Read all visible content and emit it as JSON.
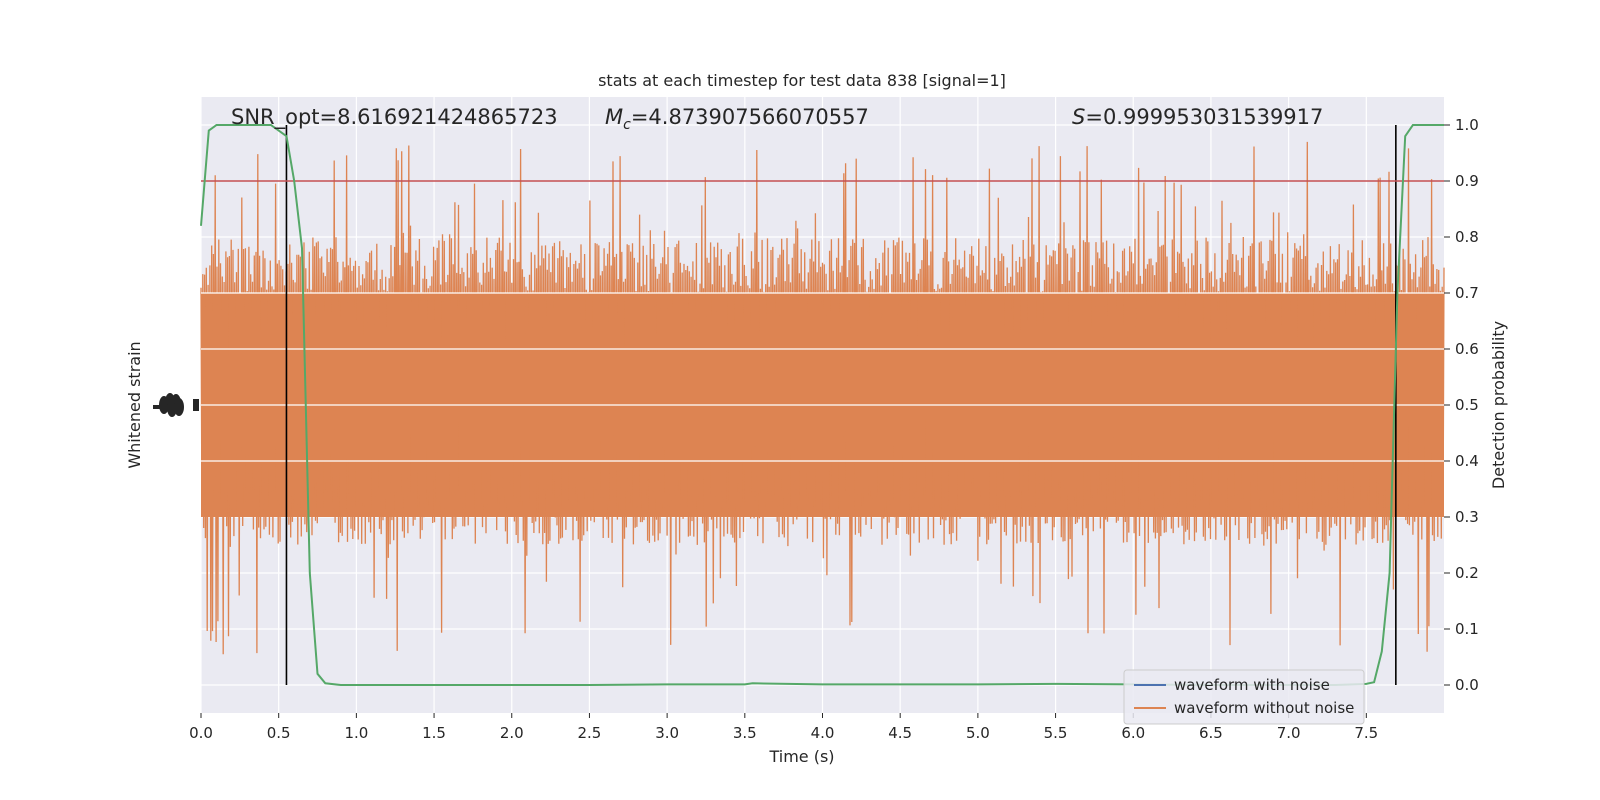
{
  "chart_data": {
    "type": "line",
    "title": "stats at each timestep for test data 838 [signal=1]",
    "xlabel": "Time (s)",
    "ylabel_left": "Whitened strain",
    "ylabel_right": "Detection probability",
    "xlim": [
      0.0,
      8.0
    ],
    "ylim_right": [
      -0.05,
      1.05
    ],
    "x_ticks": [
      "0.0",
      "0.5",
      "1.0",
      "1.5",
      "2.0",
      "2.5",
      "3.0",
      "3.5",
      "4.0",
      "4.5",
      "5.0",
      "5.5",
      "6.0",
      "6.5",
      "7.0",
      "7.5"
    ],
    "x_tick_values": [
      0.0,
      0.5,
      1.0,
      1.5,
      2.0,
      2.5,
      3.0,
      3.5,
      4.0,
      4.5,
      5.0,
      5.5,
      6.0,
      6.5,
      7.0,
      7.5
    ],
    "y_ticks_right": [
      "0.0",
      "0.1",
      "0.2",
      "0.3",
      "0.4",
      "0.5",
      "0.6",
      "0.7",
      "0.8",
      "0.9",
      "1.0"
    ],
    "y_tick_values_right": [
      0.0,
      0.1,
      0.2,
      0.3,
      0.4,
      0.5,
      0.6,
      0.7,
      0.8,
      0.9,
      1.0
    ],
    "annotations": {
      "snr": "SNR_opt=8.616921424865723",
      "mc_symbol": "M",
      "mc_sub": "c",
      "mc_value": "=4.873907566070557",
      "s_symbol": "S",
      "s_value": "=0.999953031539917"
    },
    "threshold": 0.9,
    "vertical_markers": [
      0.55,
      7.69
    ],
    "series": [
      {
        "name": "waveform with noise",
        "color": "#4c72b0"
      },
      {
        "name": "waveform without noise",
        "color": "#dd8452"
      },
      {
        "color": "#55a868",
        "x": [
          0.0,
          0.05,
          0.1,
          0.15,
          0.2,
          0.3,
          0.4,
          0.45,
          0.5,
          0.55,
          0.6,
          0.65,
          0.7,
          0.75,
          0.8,
          0.9,
          1.0,
          1.5,
          2.0,
          2.5,
          3.0,
          3.5,
          3.55,
          4.0,
          4.5,
          5.0,
          5.5,
          6.0,
          6.5,
          7.0,
          7.3,
          7.5,
          7.55,
          7.6,
          7.65,
          7.7,
          7.75,
          7.8,
          7.85,
          8.0
        ],
        "y": [
          0.82,
          0.99,
          1.0,
          1.0,
          1.0,
          1.0,
          1.0,
          1.0,
          0.99,
          0.98,
          0.9,
          0.78,
          0.2,
          0.02,
          0.003,
          0.0,
          0.0,
          0.0,
          0.0,
          0.0,
          0.001,
          0.001,
          0.003,
          0.001,
          0.001,
          0.001,
          0.002,
          0.001,
          0.0,
          0.0,
          0.0,
          0.002,
          0.005,
          0.06,
          0.2,
          0.7,
          0.98,
          1.0,
          1.0,
          1.0
        ]
      }
    ],
    "noise_envelope": {
      "upper_typical": 0.8,
      "lower_typical": 0.25,
      "upper_peak": 0.97,
      "lower_peak": 0.05
    },
    "grid": true,
    "legend_position": "lower right"
  },
  "colors": {
    "plot_bg": "#eaeaf2",
    "grid": "#ffffff",
    "threshold_line": "#c44e52",
    "marker_line": "#000000"
  }
}
